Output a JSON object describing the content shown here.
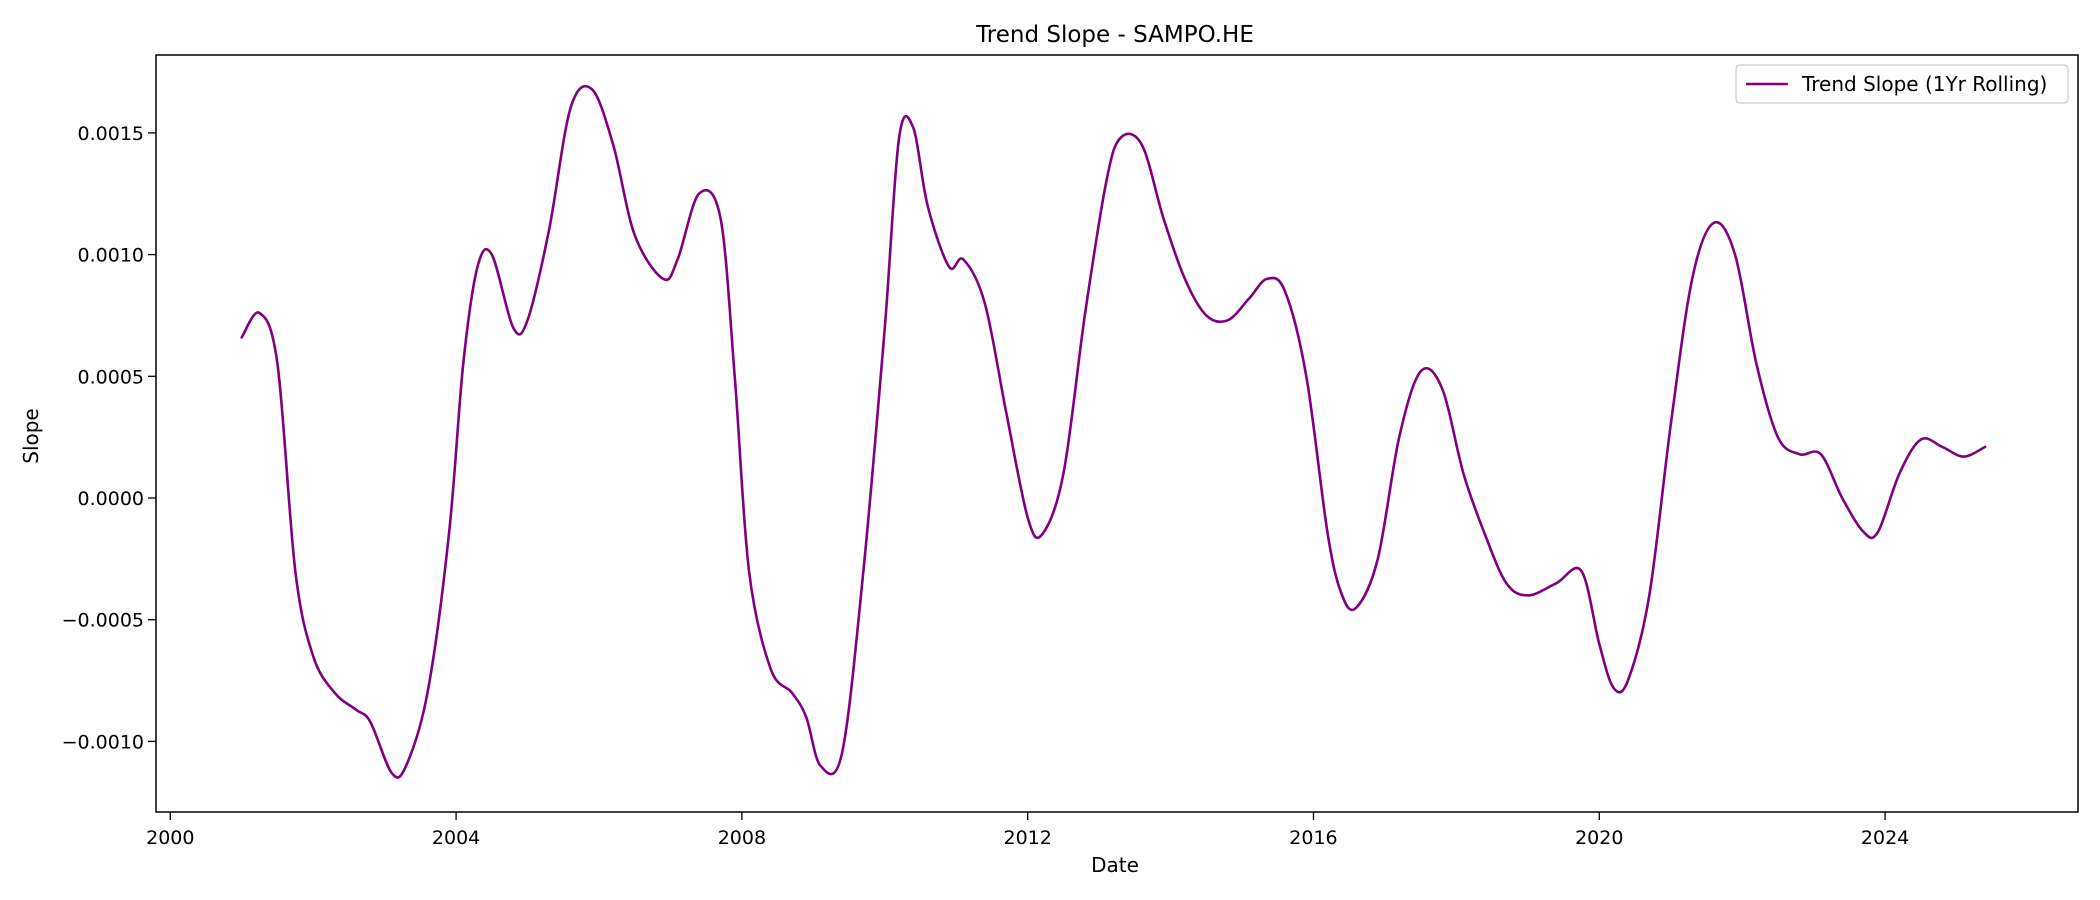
{
  "chart_data": {
    "type": "line",
    "title": "Trend Slope - SAMPO.HE",
    "xlabel": "Date",
    "ylabel": "Slope",
    "xlim": [
      1999.8,
      2026.7
    ],
    "ylim": [
      -0.00129,
      0.00182
    ],
    "x_ticks": [
      2000,
      2004,
      2008,
      2012,
      2016,
      2020,
      2024
    ],
    "x_tick_labels": [
      "2000",
      "2004",
      "2008",
      "2012",
      "2016",
      "2020",
      "2024"
    ],
    "y_ticks": [
      -0.001,
      -0.0005,
      0.0,
      0.0005,
      0.001,
      0.0015
    ],
    "y_tick_labels": [
      "−0.0010",
      "−0.0005",
      "0.0000",
      "0.0005",
      "0.0010",
      "0.0015"
    ],
    "grid": false,
    "legend_position": "upper right",
    "series": [
      {
        "name": "Trend Slope (1Yr Rolling)",
        "color": "#800080",
        "x": [
          2001.0,
          2001.25,
          2001.5,
          2001.75,
          2002.0,
          2002.3,
          2002.6,
          2002.8,
          2003.1,
          2003.3,
          2003.6,
          2003.9,
          2004.1,
          2004.3,
          2004.5,
          2004.8,
          2005.0,
          2005.3,
          2005.6,
          2005.9,
          2006.2,
          2006.5,
          2006.9,
          2007.1,
          2007.4,
          2007.7,
          2007.9,
          2008.1,
          2008.4,
          2008.7,
          2008.9,
          2009.1,
          2009.4,
          2009.7,
          2010.0,
          2010.2,
          2010.4,
          2010.6,
          2010.9,
          2011.1,
          2011.4,
          2011.7,
          2012.0,
          2012.2,
          2012.5,
          2012.8,
          2013.1,
          2013.3,
          2013.6,
          2013.9,
          2014.2,
          2014.5,
          2014.8,
          2015.1,
          2015.35,
          2015.6,
          2015.9,
          2016.2,
          2016.4,
          2016.6,
          2016.9,
          2017.2,
          2017.5,
          2017.8,
          2018.1,
          2018.4,
          2018.7,
          2019.0,
          2019.4,
          2019.75,
          2020.0,
          2020.2,
          2020.4,
          2020.7,
          2021.0,
          2021.3,
          2021.6,
          2021.9,
          2022.2,
          2022.5,
          2022.8,
          2023.1,
          2023.4,
          2023.7,
          2023.9,
          2024.2,
          2024.5,
          2024.8,
          2025.1,
          2025.4
        ],
        "y": [
          0.00066,
          0.00076,
          0.00055,
          -0.0003,
          -0.00065,
          -0.0008,
          -0.00087,
          -0.00092,
          -0.00113,
          -0.0011,
          -0.0008,
          -0.00015,
          0.00055,
          0.00095,
          0.001,
          0.0007,
          0.00073,
          0.0011,
          0.0016,
          0.00168,
          0.00145,
          0.00108,
          0.0009,
          0.00098,
          0.00125,
          0.00115,
          0.0005,
          -0.0003,
          -0.0007,
          -0.0008,
          -0.0009,
          -0.0011,
          -0.00105,
          -0.0003,
          0.0007,
          0.00148,
          0.00152,
          0.0012,
          0.00095,
          0.00098,
          0.0008,
          0.00035,
          -8e-05,
          -0.00015,
          0.0001,
          0.00075,
          0.0013,
          0.00148,
          0.00145,
          0.00115,
          0.0009,
          0.00075,
          0.00073,
          0.00082,
          0.0009,
          0.00085,
          0.0005,
          -0.00015,
          -0.0004,
          -0.00045,
          -0.00025,
          0.00025,
          0.00052,
          0.00045,
          0.0001,
          -0.00015,
          -0.00035,
          -0.0004,
          -0.00035,
          -0.0003,
          -0.0006,
          -0.00078,
          -0.00075,
          -0.0004,
          0.0003,
          0.0009,
          0.00113,
          0.001,
          0.00055,
          0.00025,
          0.00018,
          0.00018,
          0.0,
          -0.00014,
          -0.00014,
          0.0001,
          0.00024,
          0.00021,
          0.00017,
          0.00021
        ]
      }
    ]
  }
}
